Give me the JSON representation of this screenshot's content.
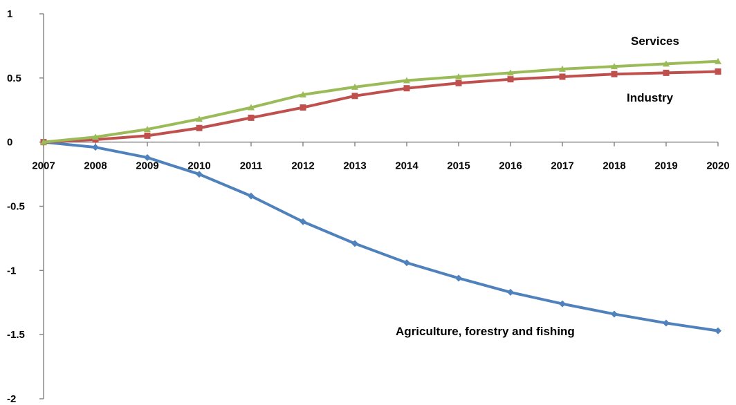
{
  "chart_data": {
    "type": "line",
    "title": "",
    "xlabel": "",
    "ylabel": "",
    "x": [
      "2007",
      "2008",
      "2009",
      "2010",
      "2011",
      "2012",
      "2013",
      "2014",
      "2015",
      "2016",
      "2017",
      "2018",
      "2019",
      "2020"
    ],
    "x_tick_labels": [
      "2007",
      "2008",
      "2009",
      "2010",
      "2011",
      "2012",
      "2013",
      "2014",
      "2015",
      "2016",
      "2017",
      "2018",
      "2019",
      "2020"
    ],
    "ylim": [
      -2,
      1
    ],
    "y_ticks": [
      1,
      0.5,
      0,
      -0.5,
      -1,
      -1.5,
      -2
    ],
    "y_tick_labels": [
      "1",
      "0.5",
      "0",
      "-0.5",
      "-1",
      "-1.5",
      "-2"
    ],
    "grid": false,
    "legend": "none (series labelled directly on the chart)",
    "series": [
      {
        "name": "Services",
        "color": "#9BBB59",
        "marker": "triangle",
        "values": [
          0,
          0.04,
          0.1,
          0.18,
          0.27,
          0.37,
          0.43,
          0.48,
          0.51,
          0.54,
          0.57,
          0.59,
          0.61,
          0.63
        ]
      },
      {
        "name": "Industry",
        "color": "#C0504D",
        "marker": "square",
        "values": [
          0,
          0.02,
          0.05,
          0.11,
          0.19,
          0.27,
          0.36,
          0.42,
          0.46,
          0.49,
          0.51,
          0.53,
          0.54,
          0.55
        ]
      },
      {
        "name": "Agriculture, forestry and fishing",
        "color": "#4F81BD",
        "marker": "diamond",
        "values": [
          0,
          -0.04,
          -0.12,
          -0.25,
          -0.42,
          -0.62,
          -0.79,
          -0.94,
          -1.06,
          -1.17,
          -1.26,
          -1.34,
          -1.41,
          -1.47
        ]
      }
    ]
  }
}
